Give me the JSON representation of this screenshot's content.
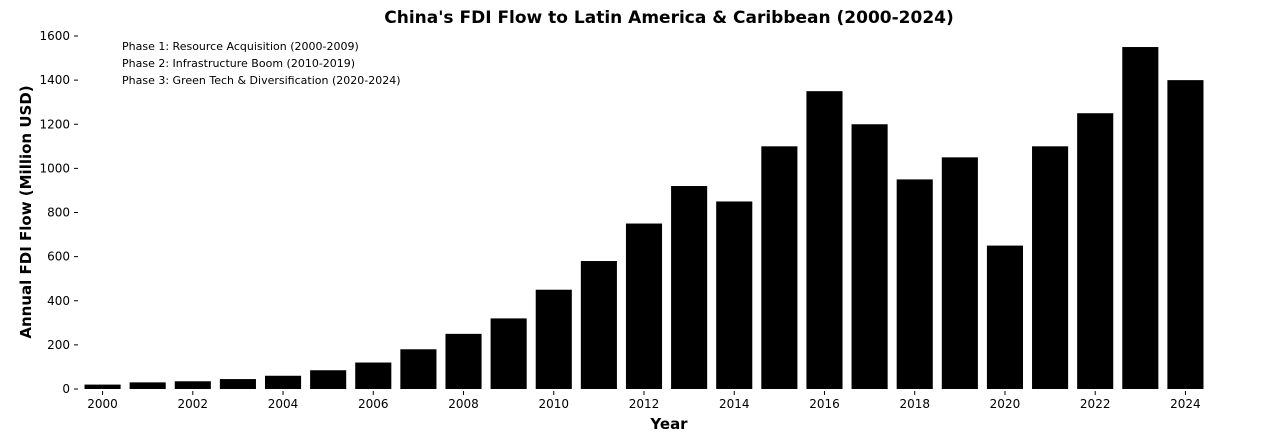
{
  "chart_data": {
    "type": "bar",
    "title": "China's FDI Flow to Latin America & Caribbean (2000-2024)",
    "xlabel": "Year",
    "ylabel": "Annual FDI Flow (Million USD)",
    "categories": [
      "2000",
      "2001",
      "2002",
      "2003",
      "2004",
      "2005",
      "2006",
      "2007",
      "2008",
      "2009",
      "2010",
      "2011",
      "2012",
      "2013",
      "2014",
      "2015",
      "2016",
      "2017",
      "2018",
      "2019",
      "2020",
      "2021",
      "2022",
      "2023",
      "2024"
    ],
    "values": [
      20,
      30,
      35,
      45,
      60,
      85,
      120,
      180,
      250,
      320,
      450,
      580,
      750,
      920,
      850,
      1100,
      1350,
      1200,
      950,
      1050,
      650,
      1100,
      1250,
      1550,
      1400
    ],
    "x_tick_labels": [
      "2000",
      "2002",
      "2004",
      "2006",
      "2008",
      "2010",
      "2012",
      "2014",
      "2016",
      "2018",
      "2020",
      "2022",
      "2024"
    ],
    "y_ticks": [
      0,
      200,
      400,
      600,
      800,
      1000,
      1200,
      1400,
      1600
    ],
    "ylim": [
      0,
      1600
    ],
    "grid": false,
    "bar_color": "#000000",
    "annotations": [
      "Phase 1: Resource Acquisition (2000-2009)",
      "Phase 2: Infrastructure Boom (2010-2019)",
      "Phase 3: Green Tech & Diversification (2020-2024)"
    ]
  }
}
